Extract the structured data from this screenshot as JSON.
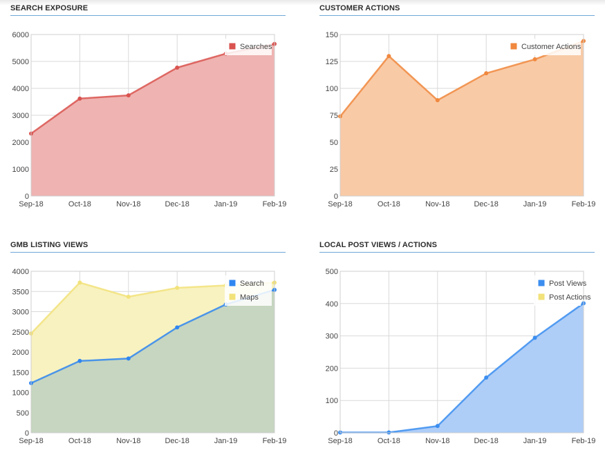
{
  "charts": [
    {
      "title": "SEARCH EXPOSURE"
    },
    {
      "title": "CUSTOMER ACTIONS"
    },
    {
      "title": "GMB LISTING VIEWS"
    },
    {
      "title": "LOCAL POST VIEWS / ACTIONS"
    }
  ],
  "chart_data": [
    {
      "type": "area",
      "title": "SEARCH EXPOSURE",
      "categories": [
        "Sep-18",
        "Oct-18",
        "Nov-18",
        "Dec-18",
        "Jan-19",
        "Feb-19"
      ],
      "ylim": [
        0,
        6000
      ],
      "yticks": [
        0,
        1000,
        2000,
        3000,
        4000,
        5000,
        6000
      ],
      "grid": true,
      "legend_position": "top-right",
      "series": [
        {
          "name": "Searches",
          "values": [
            2320,
            3620,
            3740,
            4770,
            5290,
            5650
          ],
          "color": "#d9534f",
          "fill": "#efb3b1"
        }
      ]
    },
    {
      "type": "area",
      "title": "CUSTOMER ACTIONS",
      "categories": [
        "Sep-18",
        "Oct-18",
        "Nov-18",
        "Dec-18",
        "Jan-19",
        "Feb-19"
      ],
      "ylim": [
        0,
        150
      ],
      "yticks": [
        0,
        25,
        50,
        75,
        100,
        125,
        150
      ],
      "grid": true,
      "legend_position": "top-right",
      "series": [
        {
          "name": "Customer Actions",
          "values": [
            74,
            130,
            89,
            114,
            127,
            144
          ],
          "color": "#f0883e",
          "fill": "#f9caa6"
        }
      ]
    },
    {
      "type": "area",
      "title": "GMB LISTING VIEWS",
      "categories": [
        "Sep-18",
        "Oct-18",
        "Nov-18",
        "Dec-18",
        "Jan-19",
        "Feb-19"
      ],
      "ylim": [
        0,
        4000
      ],
      "yticks": [
        0,
        500,
        1000,
        1500,
        2000,
        2500,
        3000,
        3500,
        4000
      ],
      "grid": true,
      "legend_position": "top-right",
      "series": [
        {
          "name": "Search",
          "values": [
            1230,
            1780,
            1840,
            2610,
            3180,
            3540
          ],
          "color": "#2f86f0",
          "fill": "#c6d6c0"
        },
        {
          "name": "Maps",
          "values": [
            2460,
            3720,
            3370,
            3590,
            3650,
            3720
          ],
          "color": "#f2e27a",
          "fill": "#f8f2c0"
        }
      ]
    },
    {
      "type": "area",
      "title": "LOCAL POST VIEWS / ACTIONS",
      "categories": [
        "Sep-18",
        "Oct-18",
        "Nov-18",
        "Dec-18",
        "Jan-19",
        "Feb-19"
      ],
      "ylim": [
        0,
        500
      ],
      "yticks": [
        0,
        100,
        200,
        300,
        400,
        500
      ],
      "grid": true,
      "legend_position": "top-right",
      "series": [
        {
          "name": "Post Views",
          "values": [
            1,
            1,
            21,
            171,
            294,
            401
          ],
          "color": "#3b8ef0",
          "fill": "#aecdf7"
        },
        {
          "name": "Post Actions",
          "values": [
            0,
            0,
            0,
            0,
            0,
            0
          ],
          "color": "#f2e27a",
          "fill": "#f8f2c0"
        }
      ]
    }
  ]
}
